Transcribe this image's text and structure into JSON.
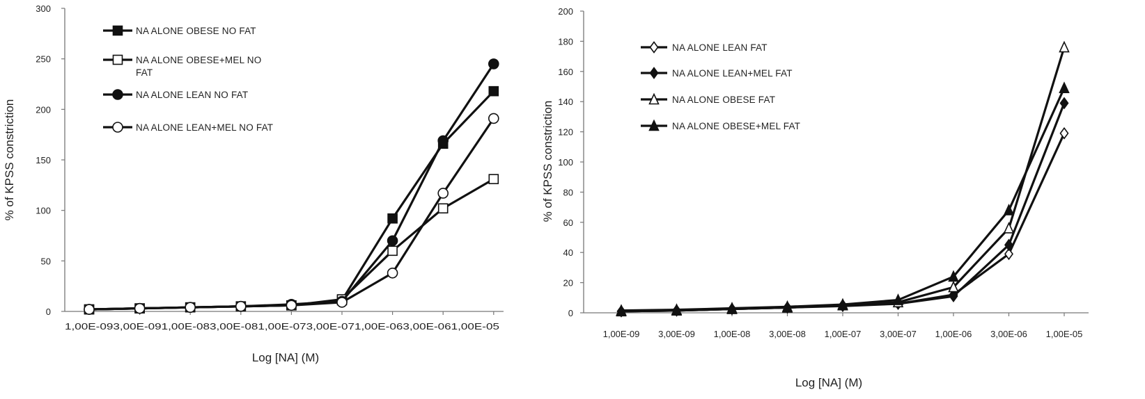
{
  "chart_data": [
    {
      "type": "line",
      "title": "",
      "xlabel": "Log [NA] (M)",
      "ylabel": "% of KPSS constriction",
      "ylim": [
        0,
        300
      ],
      "yticks": [
        0,
        50,
        100,
        150,
        200,
        250,
        300
      ],
      "grid": false,
      "legend_position": "top-left",
      "categories": [
        "1,00E-09",
        "3,00E-09",
        "1,00E-08",
        "3,00E-08",
        "1,00E-07",
        "3,00E-07",
        "1,00E-06",
        "3,00E-06",
        "1,00E-05"
      ],
      "category_labels_printed": "1,00E-093,00E-091,00E-083,00E-081,00E-073,00E-071,00E-063,00E-061,00E-05",
      "series": [
        {
          "name": "NA ALONE OBESE NO FAT",
          "name_lines": [
            "NA ALONE OBESE NO FAT"
          ],
          "marker": "square-filled",
          "values": [
            2,
            3,
            4,
            5,
            6,
            11,
            92,
            166,
            218
          ]
        },
        {
          "name": "NA ALONE OBESE+MEL NO FAT",
          "name_lines": [
            "NA ALONE OBESE+MEL NO",
            "FAT"
          ],
          "marker": "square-open",
          "values": [
            2,
            3,
            4,
            5,
            6,
            12,
            60,
            102,
            131
          ]
        },
        {
          "name": "NA ALONE LEAN NO FAT",
          "name_lines": [
            "NA ALONE LEAN NO FAT"
          ],
          "marker": "circle-filled",
          "values": [
            2,
            3,
            4,
            5,
            7,
            10,
            70,
            169,
            245
          ]
        },
        {
          "name": "NA ALONE LEAN+MEL NO FAT",
          "name_lines": [
            "NA ALONE LEAN+MEL NO FAT"
          ],
          "marker": "circle-open",
          "values": [
            2,
            3,
            4,
            5,
            6,
            9,
            38,
            117,
            191
          ]
        }
      ]
    },
    {
      "type": "line",
      "title": "",
      "xlabel": "Log [NA] (M)",
      "ylabel": "% of KPSS constriction",
      "ylim": [
        0,
        200
      ],
      "yticks": [
        0,
        20,
        40,
        60,
        80,
        100,
        120,
        140,
        160,
        180,
        200
      ],
      "grid": false,
      "legend_position": "top-left",
      "categories": [
        "1,00E-09",
        "3,00E-09",
        "1,00E-08",
        "3,00E-08",
        "1,00E-07",
        "3,00E-07",
        "1,00E-06",
        "3,00E-06",
        "1,00E-05"
      ],
      "series": [
        {
          "name": "NA ALONE LEAN FAT",
          "name_lines": [
            "NA ALONE LEAN FAT"
          ],
          "marker": "diamond-open",
          "values": [
            1,
            1.5,
            2.5,
            3.5,
            4.5,
            6,
            12,
            39,
            119
          ]
        },
        {
          "name": "NA ALONE LEAN+MEL FAT",
          "name_lines": [
            "NA ALONE LEAN+MEL FAT"
          ],
          "marker": "diamond-filled",
          "values": [
            1,
            1.5,
            2.5,
            3.5,
            5,
            6,
            11,
            45,
            139
          ]
        },
        {
          "name": "NA ALONE OBESE FAT",
          "name_lines": [
            "NA ALONE OBESE FAT"
          ],
          "marker": "triangle-open",
          "values": [
            1,
            1.5,
            2.5,
            3.5,
            5,
            7,
            17,
            56,
            176
          ]
        },
        {
          "name": "NA ALONE OBESE+MEL FAT",
          "name_lines": [
            "NA ALONE OBESE+MEL FAT"
          ],
          "marker": "triangle-filled",
          "values": [
            1.5,
            2,
            3,
            4,
            5.5,
            8.5,
            24,
            68,
            149
          ]
        }
      ]
    }
  ]
}
